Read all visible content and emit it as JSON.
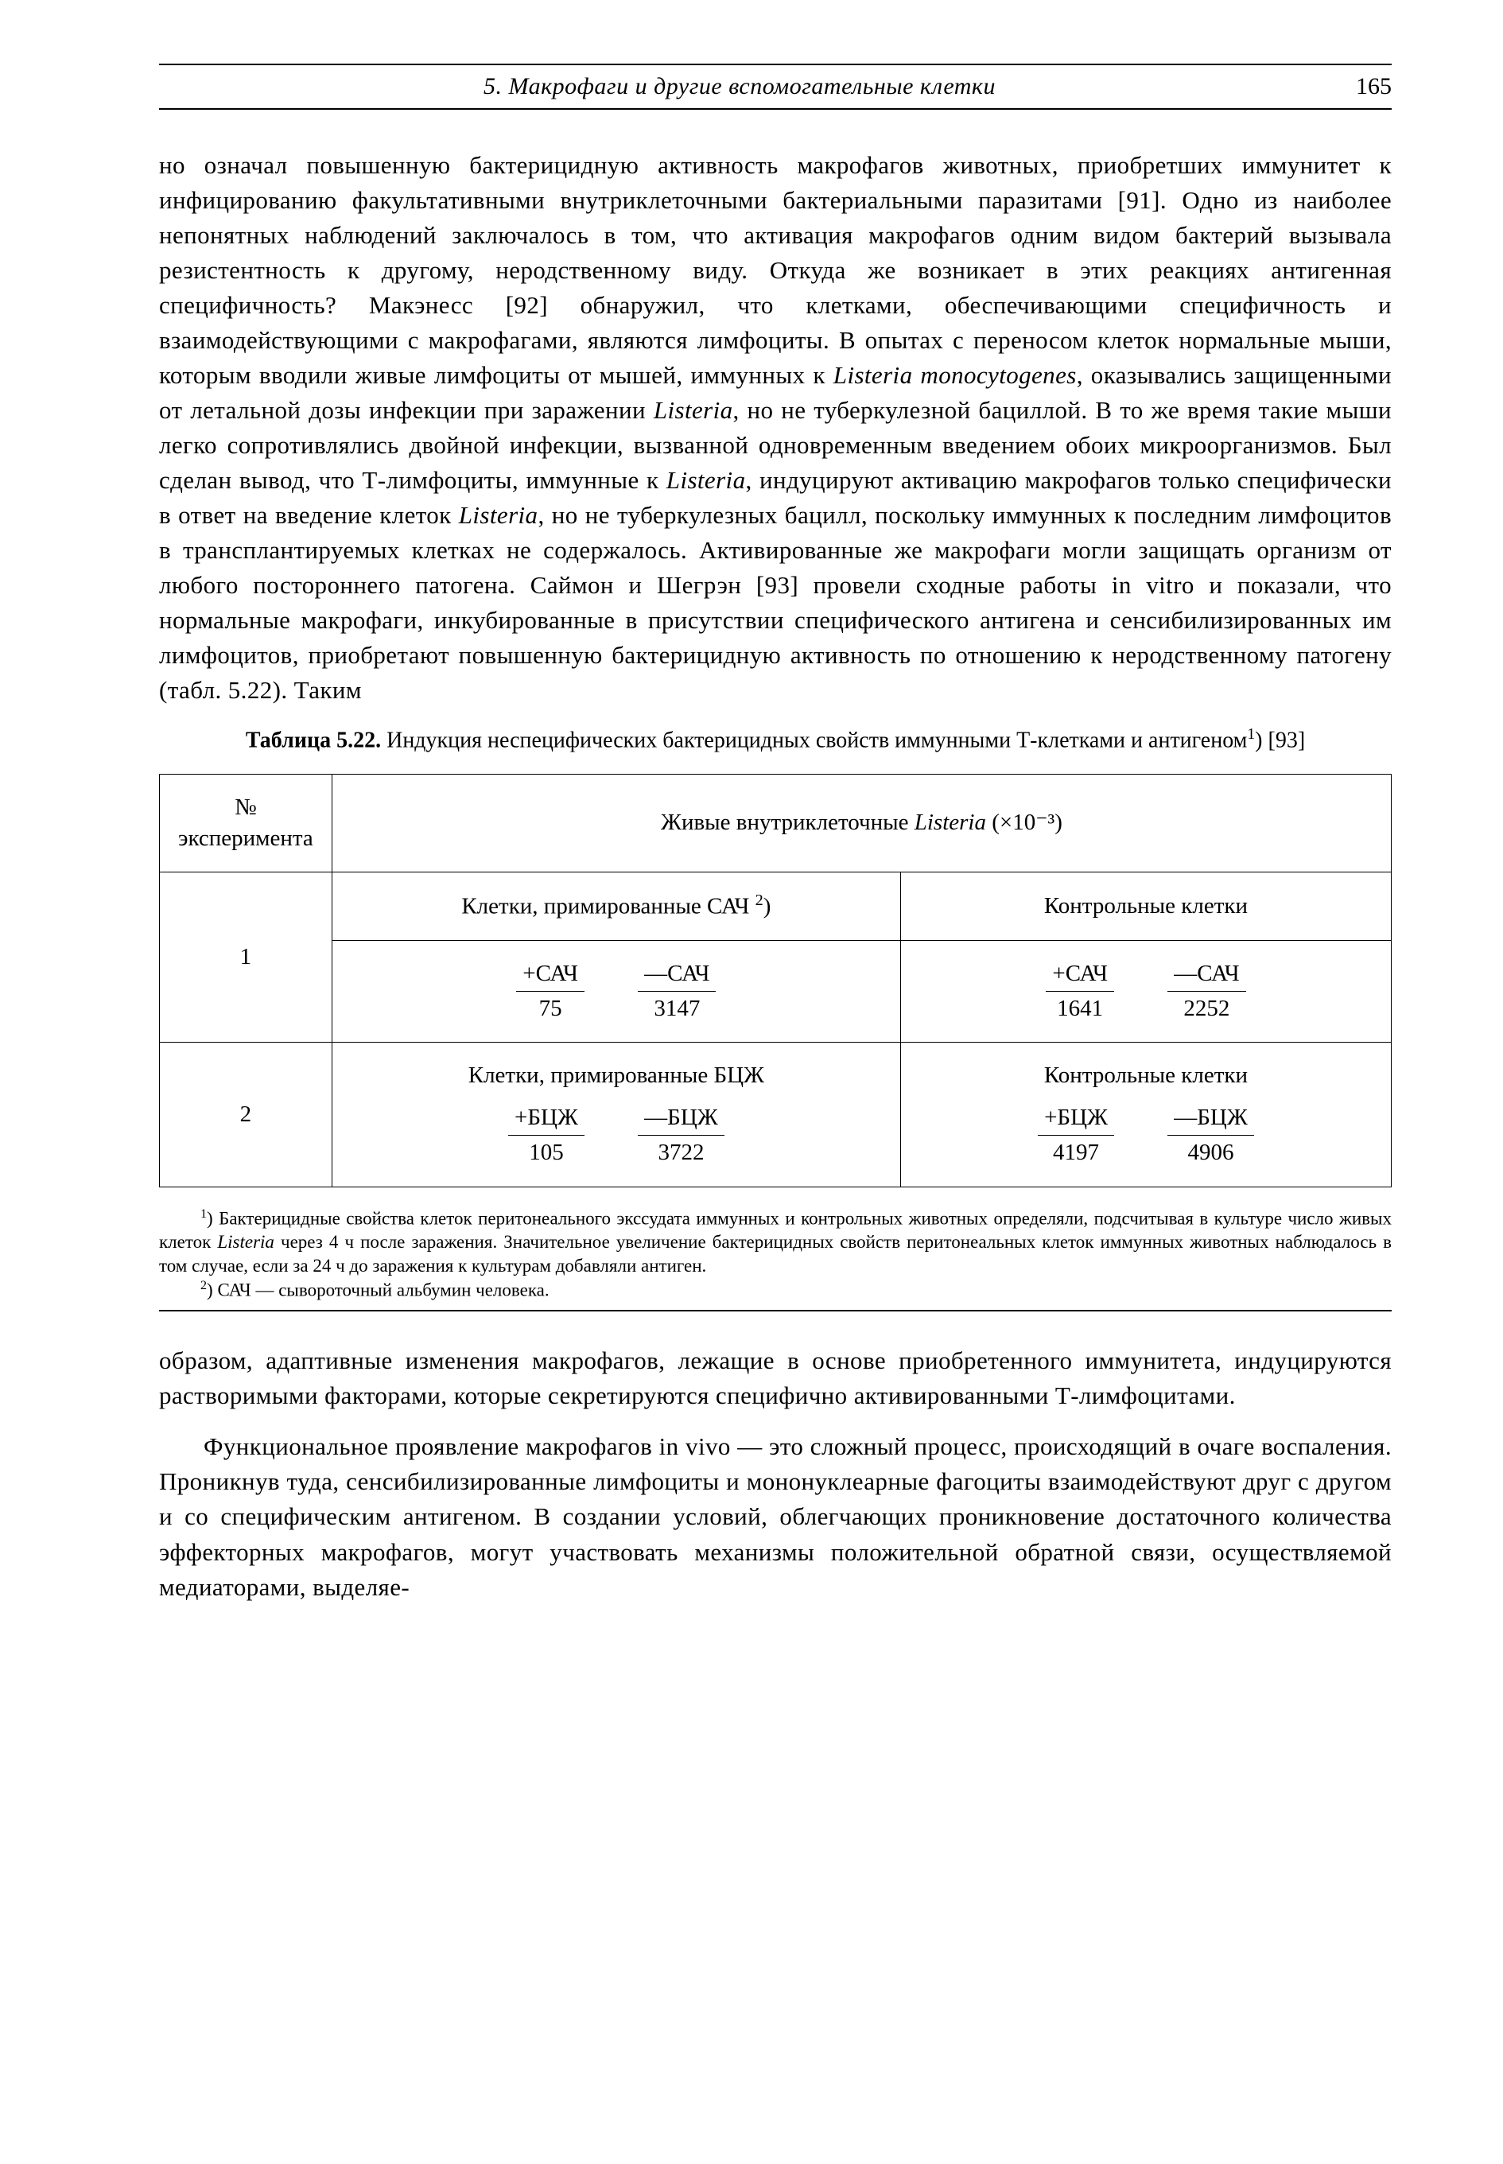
{
  "header": {
    "running_title": "5. Макрофаги и другие вспомогательные клетки",
    "page_number": "165"
  },
  "para1": "но означал повышенную бактерицидную активность макрофагов животных, приобретших иммунитет к инфицированию факультативными внутриклеточными бактериальными паразитами [91]. Одно из наиболее непонятных наблюдений заключалось в том, что активация макрофагов одним видом бактерий вызывала резистентность к другому, неродственному виду. Откуда же возникает в этих реакциях антигенная специфичность? Макэнесс [92] обнаружил, что клетками, обеспечивающими специфичность и взаимодействующими с макрофагами, являются лимфоциты. В опытах с переносом клеток нормальные мыши, которым вводили живые лимфоциты от мышей, иммунных к ",
  "para1_it1": "Listeria monocytogenes",
  "para1_b": ", оказывались защищенными от летальной дозы инфекции при заражении ",
  "para1_it2": "Listeria",
  "para1_c": ", но не туберкулезной бациллой. В то же время такие мыши легко сопротивлялись двойной инфекции, вызванной одновременным введением обоих микроорганизмов. Был сделан вывод, что Т-лимфоциты, иммунные к ",
  "para1_it3": "Listeria",
  "para1_d": ", индуцируют активацию макрофагов только специфически в ответ на введение клеток ",
  "para1_it4": "Listeria",
  "para1_e": ", но не туберкулезных бацилл, поскольку иммунных к последним лимфоцитов в трансплантируемых клетках не содержалось. Активированные же макрофаги могли защищать организм от любого постороннего патогена. Саймон и Шегрэн [93] провели сходные работы in vitro и показали, что нормальные макрофаги, инкубированные в присутствии специфического антигена и сенсибилизированных им лимфоцитов, приобретают повышенную бактерицидную активность по отношению к неродственному патогену (табл. 5.22). Таким",
  "table": {
    "caption_bold": "Таблица 5.22.",
    "caption_rest_a": " Индукция неспецифических бактерицидных свойств иммунными Т-клетками и антигеном",
    "caption_sup": "1",
    "caption_rest_b": ") [93]",
    "head_col1": "№ эксперимента",
    "head_col2_a": "Живые внутриклеточные ",
    "head_col2_it": "Listeria",
    "head_col2_b": " (×10⁻³)",
    "rows": [
      {
        "num": "1",
        "left_title_a": "Клетки, примированные САЧ ",
        "left_title_sup": "2",
        "left_title_b": ")",
        "right_title": "Контрольные клетки",
        "left_pairs": [
          {
            "label": "+САЧ",
            "value": "75"
          },
          {
            "label": "—САЧ",
            "value": "3147"
          }
        ],
        "right_pairs": [
          {
            "label": "+САЧ",
            "value": "1641"
          },
          {
            "label": "—САЧ",
            "value": "2252"
          }
        ]
      },
      {
        "num": "2",
        "left_title_a": "Клетки, примированные БЦЖ",
        "left_title_sup": "",
        "left_title_b": "",
        "right_title": "Контрольные клетки",
        "left_pairs": [
          {
            "label": "+БЦЖ",
            "value": "105"
          },
          {
            "label": "—БЦЖ",
            "value": "3722"
          }
        ],
        "right_pairs": [
          {
            "label": "+БЦЖ",
            "value": "4197"
          },
          {
            "label": "—БЦЖ",
            "value": "4906"
          }
        ]
      }
    ]
  },
  "footnote1_sup": "1",
  "footnote1_a": ") Бактерицидные свойства клеток перитонеального экссудата иммунных и контрольных животных определяли, подсчитывая в культуре число живых клеток ",
  "footnote1_it": "Listeria",
  "footnote1_b": " через 4 ч после заражения. Значительное увеличение бактерицидных свойств перитонеальных клеток иммунных животных наблюдалось в том случае, если за 24 ч до заражения к культурам добавляли антиген.",
  "footnote2_sup": "2",
  "footnote2": ") САЧ — сывороточный альбумин человека.",
  "para2": "образом, адаптивные изменения макрофагов, лежащие в основе приобретенного иммунитета, индуцируются растворимыми факторами, которые секретируются специфично активированными Т-лимфоцитами.",
  "para3": "Функциональное проявление макрофагов in vivo — это сложный процесс, происходящий в очаге воспаления. Проникнув туда, сенсибилизированные лимфоциты и мононуклеарные фагоциты взаимодействуют друг с другом и со специфическим антигеном. В создании условий, облегчающих проникновение достаточного количества эффекторных макрофагов, могут участвовать механизмы положительной обратной связи, осуществляемой медиаторами, выделяе-"
}
